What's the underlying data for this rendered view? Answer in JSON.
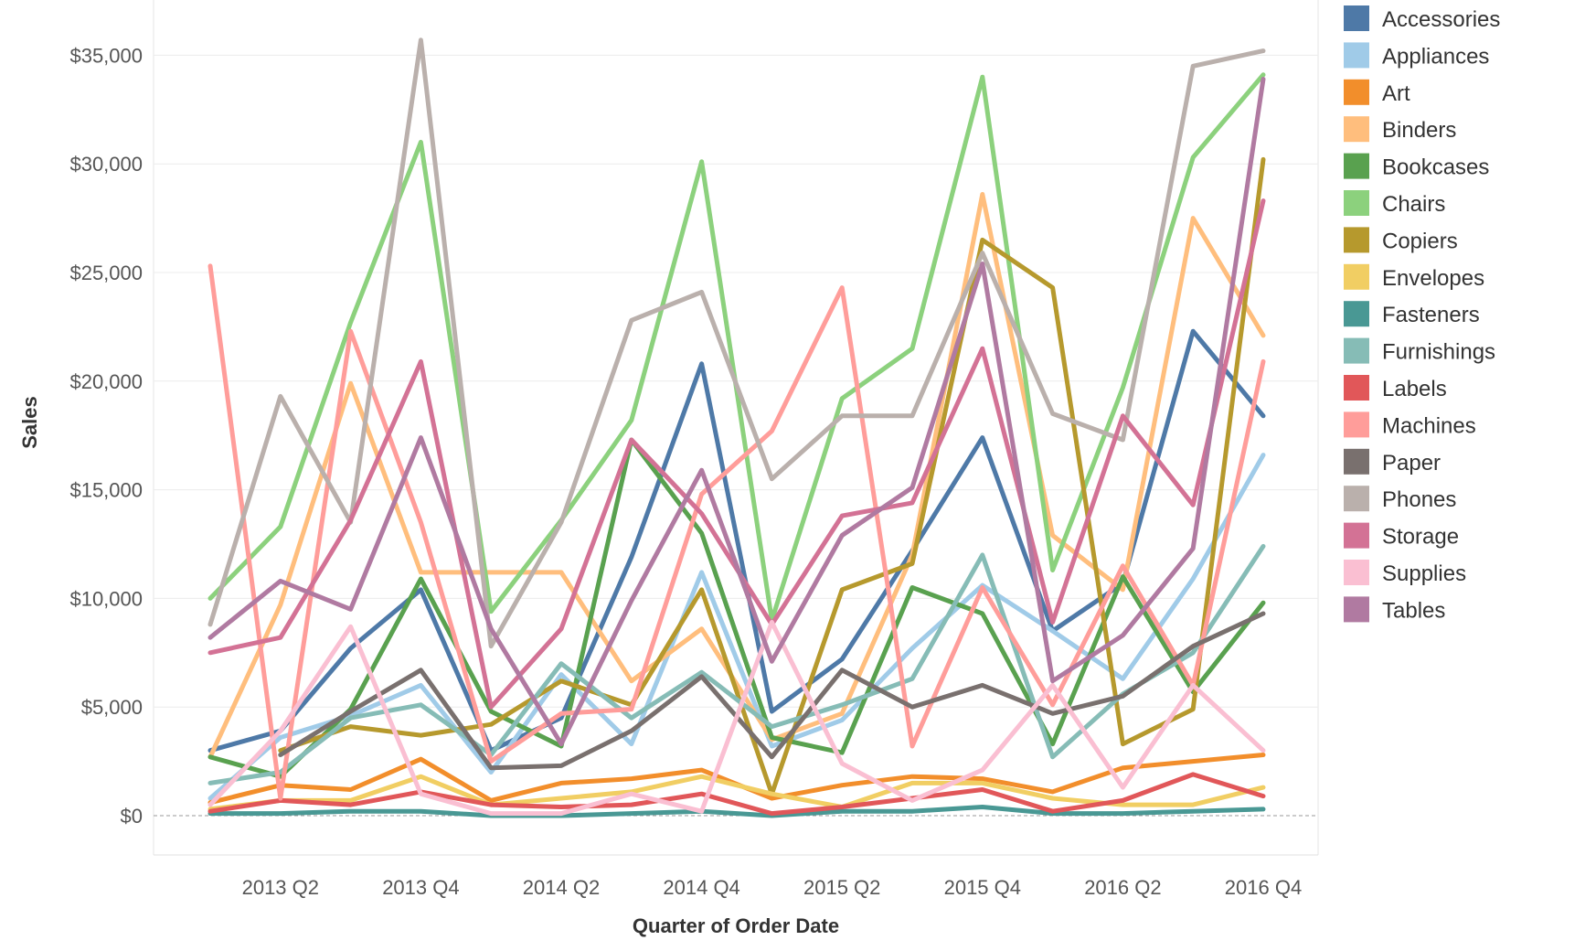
{
  "chart_data": {
    "type": "line",
    "xlabel": "Quarter of Order Date",
    "ylabel": "Sales",
    "ylim": [
      -1800,
      37600
    ],
    "yticks": [
      0,
      5000,
      10000,
      15000,
      20000,
      25000,
      30000,
      35000
    ],
    "ytick_labels": [
      "$0",
      "$5,000",
      "$10,000",
      "$15,000",
      "$20,000",
      "$25,000",
      "$30,000",
      "$35,000"
    ],
    "x": [
      "2013 Q1",
      "2013 Q2",
      "2013 Q3",
      "2013 Q4",
      "2014 Q1",
      "2014 Q2",
      "2014 Q3",
      "2014 Q4",
      "2015 Q1",
      "2015 Q2",
      "2015 Q3",
      "2015 Q4",
      "2016 Q1",
      "2016 Q2",
      "2016 Q3",
      "2016 Q4"
    ],
    "xtick_labels": [
      "2013 Q2",
      "2013 Q4",
      "2014 Q2",
      "2014 Q4",
      "2015 Q2",
      "2015 Q4",
      "2016 Q2",
      "2016 Q4"
    ],
    "legend_position": "right",
    "grid": true,
    "series": [
      {
        "name": "Accessories",
        "color": "#4e79a7",
        "values": [
          3000,
          3900,
          7700,
          10400,
          3000,
          4500,
          11900,
          20800,
          4800,
          7200,
          12200,
          17400,
          8500,
          10700,
          22300,
          18400
        ]
      },
      {
        "name": "Appliances",
        "color": "#a0cbe8",
        "values": [
          800,
          3600,
          4600,
          6000,
          2000,
          6500,
          3300,
          11200,
          3200,
          4400,
          7700,
          10600,
          8500,
          6300,
          10900,
          16600
        ]
      },
      {
        "name": "Art",
        "color": "#f28e2b",
        "values": [
          600,
          1400,
          1200,
          2600,
          700,
          1500,
          1700,
          2100,
          800,
          1400,
          1800,
          1700,
          1100,
          2200,
          2500,
          2800
        ]
      },
      {
        "name": "Binders",
        "color": "#ffbe7d",
        "values": [
          2700,
          9700,
          19900,
          11200,
          11200,
          11200,
          6200,
          8600,
          3500,
          4700,
          12000,
          28600,
          12900,
          10400,
          27500,
          22100
        ]
      },
      {
        "name": "Bookcases",
        "color": "#59a14f",
        "values": [
          2700,
          1800,
          4900,
          10900,
          4800,
          3200,
          17300,
          13000,
          3600,
          2900,
          10500,
          9300,
          3300,
          11000,
          5700,
          9800
        ]
      },
      {
        "name": "Chairs",
        "color": "#8cd17d",
        "values": [
          10000,
          13300,
          22700,
          31000,
          9400,
          13600,
          18200,
          30100,
          9000,
          19200,
          21500,
          34000,
          11300,
          19700,
          30300,
          34100
        ]
      },
      {
        "name": "Copiers",
        "color": "#b6992d",
        "values": [
          null,
          3000,
          4100,
          3700,
          4200,
          6200,
          5100,
          10400,
          1000,
          10400,
          11600,
          26500,
          24300,
          3300,
          4900,
          30200
        ]
      },
      {
        "name": "Envelopes",
        "color": "#f1ce63",
        "values": [
          300,
          700,
          700,
          1800,
          500,
          800,
          1100,
          1800,
          1000,
          400,
          1500,
          1500,
          800,
          500,
          500,
          1300
        ]
      },
      {
        "name": "Fasteners",
        "color": "#499894",
        "values": [
          100,
          100,
          200,
          200,
          0,
          0,
          100,
          200,
          0,
          200,
          200,
          400,
          100,
          100,
          200,
          300
        ]
      },
      {
        "name": "Furnishings",
        "color": "#86bcb6",
        "values": [
          1500,
          2000,
          4500,
          5100,
          2800,
          7000,
          4500,
          6600,
          4100,
          5100,
          6300,
          12000,
          2700,
          5600,
          7500,
          12400
        ]
      },
      {
        "name": "Labels",
        "color": "#e15759",
        "values": [
          200,
          700,
          500,
          1100,
          500,
          400,
          500,
          1000,
          100,
          400,
          800,
          1200,
          200,
          700,
          1900,
          900
        ]
      },
      {
        "name": "Machines",
        "color": "#ff9d9a",
        "values": [
          25300,
          800,
          22300,
          13500,
          2500,
          4700,
          4900,
          14800,
          17700,
          24300,
          3200,
          10500,
          5100,
          11500,
          6000,
          20900
        ]
      },
      {
        "name": "Paper",
        "color": "#79706e",
        "values": [
          null,
          2800,
          4800,
          6700,
          2200,
          2300,
          3900,
          6400,
          2700,
          6700,
          5000,
          6000,
          4700,
          5500,
          7800,
          9300
        ]
      },
      {
        "name": "Phones",
        "color": "#bab0ac",
        "values": [
          8800,
          19300,
          13500,
          35700,
          7800,
          13500,
          22800,
          24100,
          15500,
          18400,
          18400,
          25900,
          18500,
          17300,
          34500,
          35200
        ]
      },
      {
        "name": "Storage",
        "color": "#d37295",
        "values": [
          7500,
          8200,
          13600,
          20900,
          5000,
          8600,
          17300,
          13900,
          8800,
          13800,
          14400,
          21500,
          8900,
          18400,
          14300,
          28300
        ]
      },
      {
        "name": "Supplies",
        "color": "#fabfd2",
        "values": [
          500,
          3900,
          8700,
          1000,
          100,
          100,
          1000,
          200,
          8900,
          2400,
          700,
          2100,
          6000,
          1300,
          6000,
          3000
        ]
      },
      {
        "name": "Tables",
        "color": "#b07aa1",
        "values": [
          8200,
          10800,
          9500,
          17400,
          8600,
          3300,
          9900,
          15900,
          7100,
          12900,
          15100,
          25400,
          6200,
          8300,
          12300,
          33900
        ]
      }
    ]
  }
}
